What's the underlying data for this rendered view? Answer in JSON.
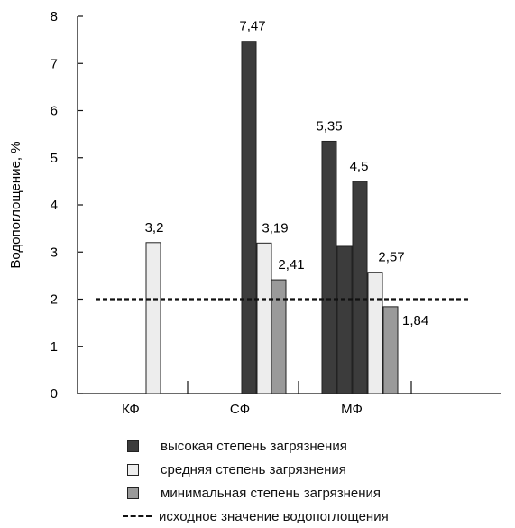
{
  "chart_data": {
    "type": "bar",
    "ylabel": "Водопоглощение, %",
    "xlabel": "",
    "ylim": [
      0,
      8
    ],
    "yticks": [
      "0",
      "1",
      "2",
      "3",
      "4",
      "5",
      "6",
      "7",
      "8"
    ],
    "categories": [
      "КФ",
      "СФ",
      "МФ"
    ],
    "series": [
      {
        "name": "высокая степень загрязнения",
        "color": "#3c3c3c",
        "values": [
          null,
          7.47,
          [
            5.35,
            3.12,
            4.5
          ]
        ],
        "labels": [
          "",
          "7,47",
          [
            "5,35",
            "",
            "4,5"
          ]
        ]
      },
      {
        "name": "средняя степень загрязнения",
        "color": "#ededed",
        "values": [
          3.2,
          3.19,
          2.57
        ],
        "labels": [
          "3,2",
          "3,19",
          "2,57"
        ]
      },
      {
        "name": "минимальная степень загрязнения",
        "color": "#9a9a9a",
        "values": [
          null,
          2.41,
          1.84
        ],
        "labels": [
          "",
          "2,41",
          "1,84"
        ]
      }
    ],
    "reference_line": {
      "name": "исходное значение водопоглощения",
      "value": 2.0,
      "style": "dashed"
    },
    "grid": false,
    "legend_position": "bottom"
  }
}
